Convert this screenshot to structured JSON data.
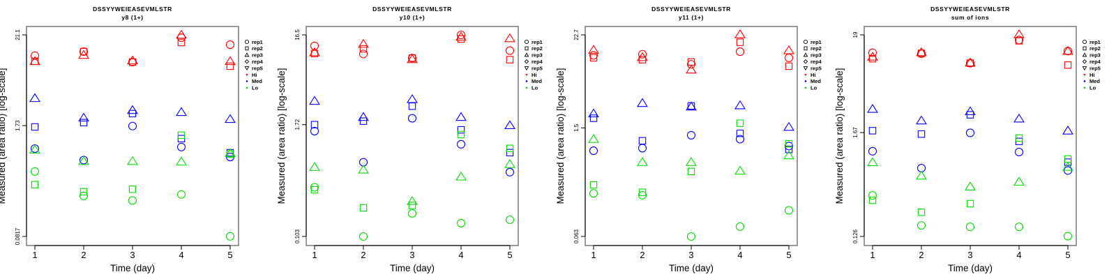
{
  "legend": {
    "items": [
      {
        "label": "rep1",
        "symbol": "circle"
      },
      {
        "label": "rep2",
        "symbol": "square"
      },
      {
        "label": "rep3",
        "symbol": "triangle-up"
      },
      {
        "label": "rep4",
        "symbol": "diamond"
      },
      {
        "label": "rep5",
        "symbol": "triangle-down"
      },
      {
        "label": "Hi",
        "symbol": "dot",
        "color": "#ff0000"
      },
      {
        "label": "Med",
        "symbol": "dot",
        "color": "#0000ff"
      },
      {
        "label": "Lo",
        "symbol": "dot",
        "color": "#00dd00"
      }
    ]
  },
  "colors": {
    "Hi": "#ff0000",
    "Med": "#0000ff",
    "Lo": "#00dd00"
  },
  "chart_data": [
    {
      "type": "scatter",
      "title": "DSSYYWEIEASEVMLSTR",
      "subtitle": "y8 (1+)",
      "xlabel": "Time (day)",
      "ylabel": "Measured (area ratio) [log-scale]",
      "yscale": "log",
      "x_ticks": [
        "1",
        "2",
        "3",
        "4",
        "5"
      ],
      "y_ticks": [
        21.1,
        1.73,
        0.0817
      ],
      "y_tick_labels": [
        "21.1",
        "1.73",
        "0.0817"
      ],
      "ylim": [
        0.0817,
        21.1
      ],
      "legend_position": "right",
      "grid": false,
      "series": [
        {
          "group": "Hi",
          "rep": "rep1",
          "x": [
            1,
            2,
            3,
            4,
            5
          ],
          "y": [
            11.9,
            13.3,
            9.98,
            19.5,
            16.1
          ]
        },
        {
          "group": "Hi",
          "rep": "rep2",
          "x": [
            1,
            2,
            3,
            4,
            5
          ],
          "y": [
            10.2,
            13.3,
            9.98,
            17.1,
            8.9
          ]
        },
        {
          "group": "Hi",
          "rep": "rep3",
          "x": [
            1,
            2,
            3,
            4,
            5
          ],
          "y": [
            10.2,
            12.1,
            10.4,
            21.1,
            10.2
          ]
        },
        {
          "group": "Med",
          "rep": "rep1",
          "x": [
            1,
            2,
            3,
            4,
            5
          ],
          "y": [
            0.92,
            0.67,
            1.71,
            0.96,
            0.73
          ]
        },
        {
          "group": "Med",
          "rep": "rep2",
          "x": [
            1,
            2,
            3,
            4,
            5
          ],
          "y": [
            1.67,
            1.88,
            2.41,
            1.21,
            0.82
          ]
        },
        {
          "group": "Med",
          "rep": "rep3",
          "x": [
            1,
            2,
            3,
            4,
            5
          ],
          "y": [
            3.68,
            2.15,
            2.65,
            2.51,
            2.07
          ]
        },
        {
          "group": "Lo",
          "rep": "rep1",
          "x": [
            1,
            2,
            3,
            4,
            5
          ],
          "y": [
            0.49,
            0.25,
            0.22,
            0.26,
            0.082
          ]
        },
        {
          "group": "Lo",
          "rep": "rep2",
          "x": [
            1,
            2,
            3,
            4,
            5
          ],
          "y": [
            0.34,
            0.28,
            0.3,
            1.33,
            0.79
          ]
        },
        {
          "group": "Lo",
          "rep": "rep3",
          "x": [
            1,
            2,
            3,
            4,
            5
          ],
          "y": [
            0.89,
            0.65,
            0.65,
            0.64,
            0.81
          ]
        }
      ]
    },
    {
      "type": "scatter",
      "title": "DSSYYWEIEASEVMLSTR",
      "subtitle": "y10 (1+)",
      "xlabel": "Time (day)",
      "ylabel": "Measured (area ratio) [log-scale]",
      "yscale": "log",
      "x_ticks": [
        "1",
        "2",
        "3",
        "4",
        "5"
      ],
      "y_ticks": [
        16.5,
        1.72,
        0.103
      ],
      "y_tick_labels": [
        "16.5",
        "1.72",
        "0.103"
      ],
      "ylim": [
        0.103,
        16.5
      ],
      "legend_position": "right",
      "grid": false,
      "series": [
        {
          "group": "Hi",
          "rep": "rep1",
          "x": [
            1,
            2,
            3,
            4,
            5
          ],
          "y": [
            12.5,
            10.2,
            9.2,
            16.5,
            11.1
          ]
        },
        {
          "group": "Hi",
          "rep": "rep2",
          "x": [
            1,
            2,
            3,
            4,
            5
          ],
          "y": [
            10.3,
            11.6,
            9.2,
            14.9,
            8.83
          ]
        },
        {
          "group": "Hi",
          "rep": "rep3",
          "x": [
            1,
            2,
            3,
            4,
            5
          ],
          "y": [
            10.6,
            13.1,
            8.93,
            15.7,
            15.1
          ]
        },
        {
          "group": "Med",
          "rep": "rep1",
          "x": [
            1,
            2,
            3,
            4,
            5
          ],
          "y": [
            1.46,
            0.667,
            2.02,
            1.05,
            0.52
          ]
        },
        {
          "group": "Med",
          "rep": "rep2",
          "x": [
            1,
            2,
            3,
            4,
            5
          ],
          "y": [
            1.72,
            1.88,
            2.74,
            1.51,
            0.85
          ]
        },
        {
          "group": "Med",
          "rep": "rep3",
          "x": [
            1,
            2,
            3,
            4,
            5
          ],
          "y": [
            3.12,
            2.08,
            3.26,
            2.08,
            1.69
          ]
        },
        {
          "group": "Lo",
          "rep": "rep1",
          "x": [
            1,
            2,
            3,
            4,
            5
          ],
          "y": [
            0.355,
            0.103,
            0.184,
            0.144,
            0.157
          ]
        },
        {
          "group": "Lo",
          "rep": "rep2",
          "x": [
            1,
            2,
            3,
            4,
            5
          ],
          "y": [
            0.334,
            0.212,
            0.225,
            1.34,
            0.946
          ]
        },
        {
          "group": "Lo",
          "rep": "rep3",
          "x": [
            1,
            2,
            3,
            4,
            5
          ],
          "y": [
            0.59,
            0.553,
            0.25,
            0.464,
            0.635
          ]
        }
      ]
    },
    {
      "type": "scatter",
      "title": "DSSYYWEIEASEVMLSTR",
      "subtitle": "y11 (1+)",
      "xlabel": "Time (day)",
      "ylabel": "Measured (area ratio) [log-scale]",
      "yscale": "log",
      "x_ticks": [
        "1",
        "2",
        "3",
        "4",
        "5"
      ],
      "y_ticks": [
        22.7,
        1.5,
        0.063
      ],
      "y_tick_labels": [
        "22.7",
        "1.5",
        "0.063"
      ],
      "ylim": [
        0.063,
        22.7
      ],
      "legend_position": "right",
      "grid": false,
      "series": [
        {
          "group": "Hi",
          "rep": "rep1",
          "x": [
            1,
            2,
            3,
            4,
            5
          ],
          "y": [
            12.5,
            12.9,
            9.6,
            13.9,
            11.6
          ]
        },
        {
          "group": "Hi",
          "rep": "rep2",
          "x": [
            1,
            2,
            3,
            4,
            5
          ],
          "y": [
            11.6,
            11.0,
            10.3,
            18.3,
            9.1
          ]
        },
        {
          "group": "Hi",
          "rep": "rep3",
          "x": [
            1,
            2,
            3,
            4,
            5
          ],
          "y": [
            14.6,
            11.8,
            8.2,
            23.0,
            14.4
          ]
        },
        {
          "group": "Med",
          "rep": "rep1",
          "x": [
            1,
            2,
            3,
            4,
            5
          ],
          "y": [
            0.77,
            0.83,
            1.21,
            1.08,
            0.883
          ]
        },
        {
          "group": "Med",
          "rep": "rep2",
          "x": [
            1,
            2,
            3,
            4,
            5
          ],
          "y": [
            1.99,
            1.03,
            2.85,
            1.28,
            0.8
          ]
        },
        {
          "group": "Med",
          "rep": "rep3",
          "x": [
            1,
            2,
            3,
            4,
            5
          ],
          "y": [
            2.28,
            3.09,
            2.79,
            2.89,
            1.54
          ]
        },
        {
          "group": "Lo",
          "rep": "rep1",
          "x": [
            1,
            2,
            3,
            4,
            5
          ],
          "y": [
            0.222,
            0.21,
            0.063,
            0.084,
            0.135
          ]
        },
        {
          "group": "Lo",
          "rep": "rep2",
          "x": [
            1,
            2,
            3,
            4,
            5
          ],
          "y": [
            0.284,
            0.229,
            0.42,
            1.72,
            0.944
          ]
        },
        {
          "group": "Lo",
          "rep": "rep3",
          "x": [
            1,
            2,
            3,
            4,
            5
          ],
          "y": [
            1.08,
            0.55,
            0.55,
            0.428,
            0.67
          ]
        }
      ]
    },
    {
      "type": "scatter",
      "title": "DSSYYWEIEASEVMLSTR",
      "subtitle": "sum of ions",
      "xlabel": "Time (day)",
      "ylabel": "Measured (area ratio) [log-scale]",
      "yscale": "log",
      "x_ticks": [
        "1",
        "2",
        "3",
        "4",
        "5"
      ],
      "y_ticks": [
        19,
        1.67,
        0.126
      ],
      "y_tick_labels": [
        "19",
        "1.67",
        "0.126"
      ],
      "ylim": [
        0.126,
        19
      ],
      "legend_position": "right",
      "grid": false,
      "series": [
        {
          "group": "Hi",
          "rep": "rep1",
          "x": [
            1,
            2,
            3,
            4,
            5
          ],
          "y": [
            12.2,
            11.9,
            9.4,
            16.7,
            12.7
          ]
        },
        {
          "group": "Hi",
          "rep": "rep2",
          "x": [
            1,
            2,
            3,
            4,
            5
          ],
          "y": [
            10.5,
            12.0,
            9.4,
            16.4,
            8.98
          ]
        },
        {
          "group": "Hi",
          "rep": "rep3",
          "x": [
            1,
            2,
            3,
            4,
            5
          ],
          "y": [
            11.0,
            12.3,
            9.5,
            19.2,
            12.7
          ]
        },
        {
          "group": "Med",
          "rep": "rep1",
          "x": [
            1,
            2,
            3,
            4,
            5
          ],
          "y": [
            1.05,
            0.69,
            1.66,
            1.03,
            0.65
          ]
        },
        {
          "group": "Med",
          "rep": "rep2",
          "x": [
            1,
            2,
            3,
            4,
            5
          ],
          "y": [
            1.75,
            1.61,
            2.6,
            1.34,
            0.8
          ]
        },
        {
          "group": "Med",
          "rep": "rep3",
          "x": [
            1,
            2,
            3,
            4,
            5
          ],
          "y": [
            3.0,
            2.25,
            2.83,
            2.36,
            1.75
          ]
        },
        {
          "group": "Lo",
          "rep": "rep1",
          "x": [
            1,
            2,
            3,
            4,
            5
          ],
          "y": [
            0.35,
            0.166,
            0.16,
            0.16,
            0.127
          ]
        },
        {
          "group": "Lo",
          "rep": "rep2",
          "x": [
            1,
            2,
            3,
            4,
            5
          ],
          "y": [
            0.31,
            0.23,
            0.285,
            1.46,
            0.867
          ]
        },
        {
          "group": "Lo",
          "rep": "rep3",
          "x": [
            1,
            2,
            3,
            4,
            5
          ],
          "y": [
            0.796,
            0.57,
            0.435,
            0.49,
            0.71
          ]
        }
      ]
    }
  ]
}
